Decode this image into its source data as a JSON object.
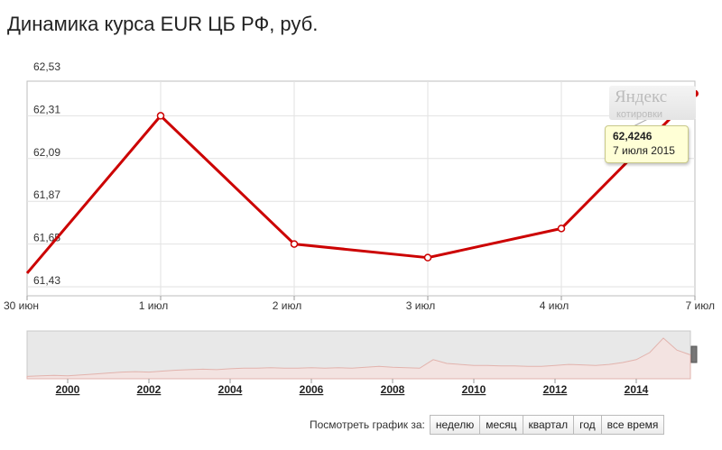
{
  "page_title": "Динамика курса EUR ЦБ РФ, руб.",
  "chart_data": {
    "type": "line",
    "title": "Динамика курса EUR ЦБ РФ, руб.",
    "categories": [
      "30 июн",
      "1 июл",
      "2 июл",
      "3 июл",
      "4 июл",
      "7 июл"
    ],
    "series": [
      {
        "values": [
          61.5,
          62.31,
          61.65,
          61.58,
          61.73,
          62.4246
        ]
      }
    ],
    "y_ticks": [
      "62,53",
      "62,31",
      "62,09",
      "61,87",
      "61,65",
      "61,43"
    ],
    "ylim": [
      61.43,
      62.53
    ],
    "grid": true,
    "line_color": "#cc0000"
  },
  "tooltip": {
    "value": "62,4246",
    "date": "7 июля 2015"
  },
  "watermark": {
    "name": "Яндекс",
    "sub": "котировки"
  },
  "overview": {
    "years": [
      "2000",
      "2002",
      "2004",
      "2006",
      "2008",
      "2010",
      "2012",
      "2014"
    ],
    "profile": [
      0.05,
      0.06,
      0.07,
      0.06,
      0.08,
      0.1,
      0.12,
      0.14,
      0.15,
      0.14,
      0.16,
      0.18,
      0.19,
      0.2,
      0.19,
      0.21,
      0.22,
      0.22,
      0.23,
      0.22,
      0.22,
      0.23,
      0.22,
      0.23,
      0.22,
      0.24,
      0.26,
      0.24,
      0.23,
      0.22,
      0.4,
      0.32,
      0.3,
      0.28,
      0.28,
      0.27,
      0.27,
      0.26,
      0.26,
      0.28,
      0.3,
      0.29,
      0.28,
      0.3,
      0.34,
      0.4,
      0.55,
      0.85,
      0.6,
      0.5
    ]
  },
  "period_selector": {
    "label": "Посмотреть график за:",
    "options": [
      "неделю",
      "месяц",
      "квартал",
      "год",
      "все время"
    ]
  }
}
